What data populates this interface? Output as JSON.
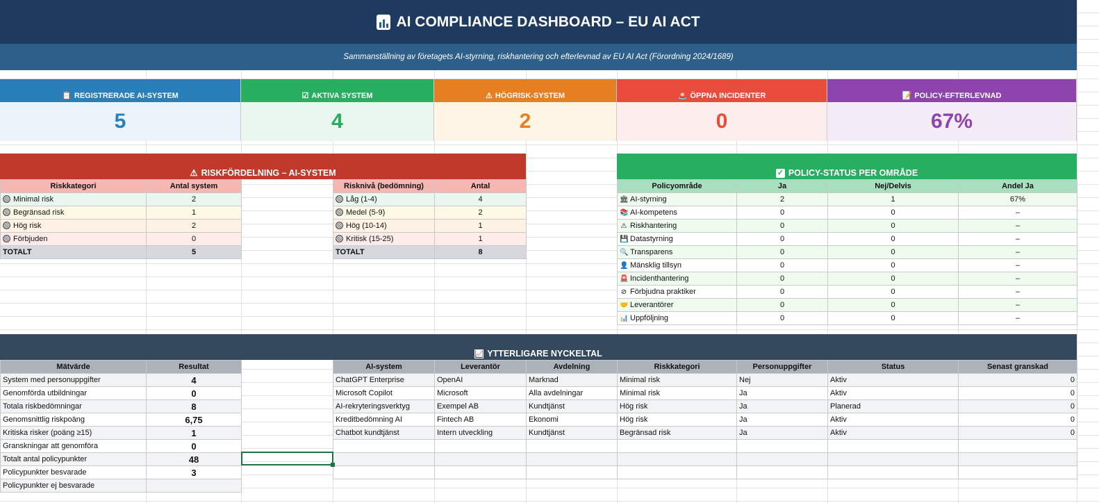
{
  "header": {
    "title": "AI COMPLIANCE DASHBOARD – EU AI ACT",
    "title_icon": "bar-chart-icon",
    "subtitle": "Sammanställning av företagets AI-styrning, riskhantering och efterlevnad av EU AI Act (Förordning 2024/1689)"
  },
  "kpis": [
    {
      "label": "REGISTRERADE AI-SYSTEM",
      "value": "5",
      "icon": "clipboard-icon",
      "color": "#2980b9",
      "bg": "#ebf4fb"
    },
    {
      "label": "AKTIVA SYSTEM",
      "value": "4",
      "icon": "checkbox-icon",
      "color": "#27ae60",
      "bg": "#e9f7ef"
    },
    {
      "label": "HÖGRISK-SYSTEM",
      "value": "2",
      "icon": "warning-icon",
      "color": "#e67e22",
      "bg": "#fef5e7"
    },
    {
      "label": "ÖPPNA INCIDENTER",
      "value": "0",
      "icon": "siren-icon",
      "color": "#e74c3c",
      "bg": "#fdedec"
    },
    {
      "label": "POLICY-EFTERLEVNAD",
      "value": "67%",
      "icon": "memo-icon",
      "color": "#8e44ad",
      "bg": "#f4ecf7"
    }
  ],
  "risk": {
    "title": "RISKFÖRDELNING – AI-SYSTEM",
    "color": "#c0392b",
    "cat_headers": [
      "Riskkategori",
      "Antal system"
    ],
    "categories": [
      [
        "Minimal risk",
        "2"
      ],
      [
        "Begränsad risk",
        "1"
      ],
      [
        "Hög risk",
        "2"
      ],
      [
        "Förbjuden",
        "0"
      ]
    ],
    "cat_total": [
      "TOTALT",
      "5"
    ],
    "level_headers": [
      "Risknivå (bedömning)",
      "Antal"
    ],
    "levels": [
      [
        "Låg (1-4)",
        "4"
      ],
      [
        "Medel (5-9)",
        "2"
      ],
      [
        "Hög (10-14)",
        "1"
      ],
      [
        "Kritisk (15-25)",
        "1"
      ]
    ],
    "level_total": [
      "TOTALT",
      "8"
    ]
  },
  "policy": {
    "title": "POLICY-STATUS PER OMRÅDE",
    "color": "#27ae60",
    "headers": [
      "Policyområde",
      "Ja",
      "Nej/Delvis",
      "Andel Ja"
    ],
    "rows": [
      {
        "icon": "🏛",
        "icon_name": "bank-icon",
        "cells": [
          "AI-styrning",
          "2",
          "1",
          "67%"
        ]
      },
      {
        "icon": "📚",
        "icon_name": "books-icon",
        "cells": [
          "AI-kompetens",
          "0",
          "0",
          "–"
        ]
      },
      {
        "icon": "⚠",
        "icon_name": "warning-icon",
        "cells": [
          "Riskhantering",
          "0",
          "0",
          "–"
        ]
      },
      {
        "icon": "💾",
        "icon_name": "floppy-disk-icon",
        "cells": [
          "Datastyrning",
          "0",
          "0",
          "–"
        ]
      },
      {
        "icon": "🔍",
        "icon_name": "magnifier-icon",
        "cells": [
          "Transparens",
          "0",
          "0",
          "–"
        ]
      },
      {
        "icon": "👤",
        "icon_name": "person-icon",
        "cells": [
          "Mänsklig tillsyn",
          "0",
          "0",
          "–"
        ]
      },
      {
        "icon": "🚨",
        "icon_name": "siren-icon",
        "cells": [
          "Incidenthantering",
          "0",
          "0",
          "–"
        ]
      },
      {
        "icon": "⊘",
        "icon_name": "prohibited-icon",
        "cells": [
          "Förbjudna praktiker",
          "0",
          "0",
          "–"
        ]
      },
      {
        "icon": "🤝",
        "icon_name": "handshake-icon",
        "cells": [
          "Leverantörer",
          "0",
          "0",
          "–"
        ]
      },
      {
        "icon": "📊",
        "icon_name": "bar-chart-icon",
        "cells": [
          "Uppföljning",
          "0",
          "0",
          "–"
        ]
      }
    ]
  },
  "extra": {
    "title": "YTTERLIGARE NYCKELTAL",
    "color": "#34495e",
    "metric_headers": [
      "Mätvärde",
      "Resultat"
    ],
    "metrics": [
      [
        "System med personuppgifter",
        "4"
      ],
      [
        "Genomförda utbildningar",
        "0"
      ],
      [
        "Totala riskbedömningar",
        "8"
      ],
      [
        "Genomsnittlig riskpoäng",
        "6,75"
      ],
      [
        "Kritiska risker (poäng ≥15)",
        "1"
      ],
      [
        "Granskningar att genomföra",
        "0"
      ],
      [
        "Totalt antal policypunkter",
        "48"
      ],
      [
        "Policypunkter besvarade",
        "3"
      ],
      [
        "Policypunkter ej besvarade",
        ""
      ]
    ],
    "system_headers": [
      "AI-system",
      "Leverantör",
      "Avdelning",
      "Riskkategori",
      "Personuppgifter",
      "Status",
      "Senast granskad"
    ],
    "systems": [
      [
        "ChatGPT Enterprise",
        "OpenAI",
        "Marknad",
        "Minimal risk",
        "Nej",
        "Aktiv",
        "0"
      ],
      [
        "Microsoft Copilot",
        "Microsoft",
        "Alla avdelningar",
        "Minimal risk",
        "Ja",
        "Aktiv",
        "0"
      ],
      [
        "AI-rekryteringsverktyg",
        "Exempel AB",
        "Kundtjänst",
        "Hög risk",
        "Ja",
        "Planerad",
        "0"
      ],
      [
        "Kreditbedömning AI",
        "Fintech AB",
        "Ekonomi",
        "Hög risk",
        "Ja",
        "Aktiv",
        "0"
      ],
      [
        "Chatbot kundtjänst",
        "Intern utveckling",
        "Kundtjänst",
        "Begränsad risk",
        "Ja",
        "Aktiv",
        "0"
      ],
      [
        "",
        "",
        "",
        "",
        "",
        "",
        ""
      ],
      [
        "",
        "",
        "",
        "",
        "",
        "",
        ""
      ],
      [
        "",
        "",
        "",
        "",
        "",
        "",
        ""
      ]
    ]
  }
}
